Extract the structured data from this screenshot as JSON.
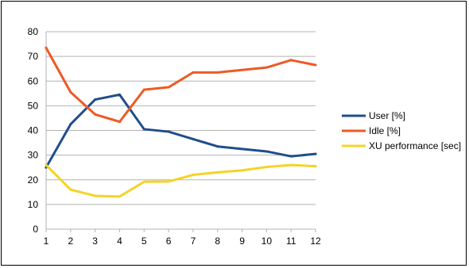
{
  "chart_data": {
    "type": "line",
    "title": "",
    "xlabel": "",
    "ylabel": "",
    "x": [
      1,
      2,
      3,
      4,
      5,
      6,
      7,
      8,
      9,
      10,
      11,
      12
    ],
    "xticks": [
      "1",
      "2",
      "3",
      "4",
      "5",
      "6",
      "7",
      "8",
      "9",
      "10",
      "11",
      "12"
    ],
    "yticks": [
      "0",
      "10",
      "20",
      "30",
      "40",
      "50",
      "60",
      "70",
      "80"
    ],
    "ylim": [
      0,
      80
    ],
    "grid": "horizontal",
    "legend_position": "right",
    "series": [
      {
        "name": "User [%]",
        "color": "#1f4e8c",
        "values": [
          25,
          42.5,
          52.5,
          54.5,
          40.5,
          39.5,
          36.5,
          33.5,
          32.5,
          31.5,
          29.5,
          30.5
        ]
      },
      {
        "name": "Idle [%]",
        "color": "#ee5a24",
        "values": [
          73.5,
          55.5,
          46.5,
          43.5,
          56.5,
          57.5,
          63.5,
          63.5,
          64.5,
          65.5,
          68.5,
          66.5
        ]
      },
      {
        "name": "XU performance [sec]",
        "color": "#f5d327",
        "values": [
          26,
          16,
          13.5,
          13.2,
          19.2,
          19.3,
          22,
          23,
          23.8,
          25.2,
          26,
          25.5
        ]
      }
    ]
  }
}
